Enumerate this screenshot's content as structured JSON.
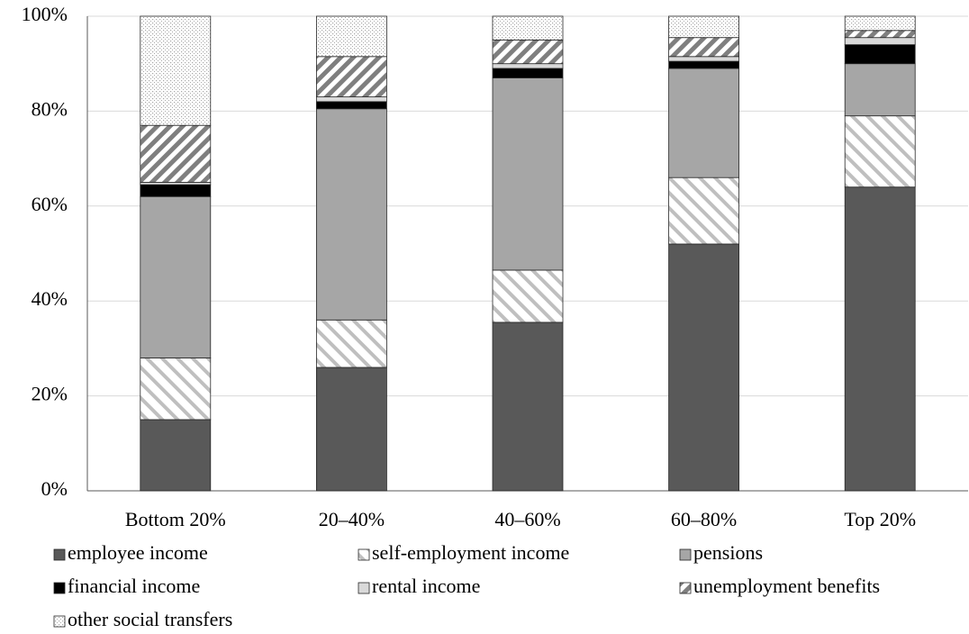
{
  "chart_data": {
    "type": "stacked-bar",
    "categories": [
      "Bottom 20%",
      "20–40%",
      "40–60%",
      "60–80%",
      "Top 20%"
    ],
    "series": [
      {
        "name": "employee income",
        "color": "#595959",
        "pattern": "solid",
        "values": [
          15,
          26,
          35.5,
          52,
          64
        ]
      },
      {
        "name": "self-employment income",
        "color": "#bfbfbf",
        "pattern": "light-downward-diagonal",
        "values": [
          13,
          10,
          11,
          14,
          15
        ]
      },
      {
        "name": "pensions",
        "color": "#a6a6a6",
        "pattern": "solid",
        "values": [
          34,
          44.5,
          40.5,
          23,
          11
        ]
      },
      {
        "name": "financial income",
        "color": "#000000",
        "pattern": "solid",
        "values": [
          2.5,
          1.5,
          2,
          1.5,
          4
        ]
      },
      {
        "name": "rental income",
        "color": "#d9d9d9",
        "pattern": "solid",
        "values": [
          0.5,
          1,
          1,
          1,
          1.5
        ]
      },
      {
        "name": "unemployment benefits",
        "color": "#7f7f7f",
        "pattern": "wide-upward-diagonal",
        "values": [
          12,
          8.5,
          5,
          4,
          1.5
        ]
      },
      {
        "name": "other social transfers",
        "color": "#a6a6a6",
        "pattern": "dots",
        "values": [
          23,
          8.5,
          5,
          4.5,
          3
        ]
      }
    ],
    "ylim": [
      0,
      100
    ],
    "yticks": [
      {
        "value": 0,
        "label": "0%"
      },
      {
        "value": 20,
        "label": "20%"
      },
      {
        "value": 40,
        "label": "40%"
      },
      {
        "value": 60,
        "label": "60%"
      },
      {
        "value": 80,
        "label": "80%"
      },
      {
        "value": 100,
        "label": "100%"
      }
    ],
    "grid": true,
    "legend": "bottom"
  }
}
